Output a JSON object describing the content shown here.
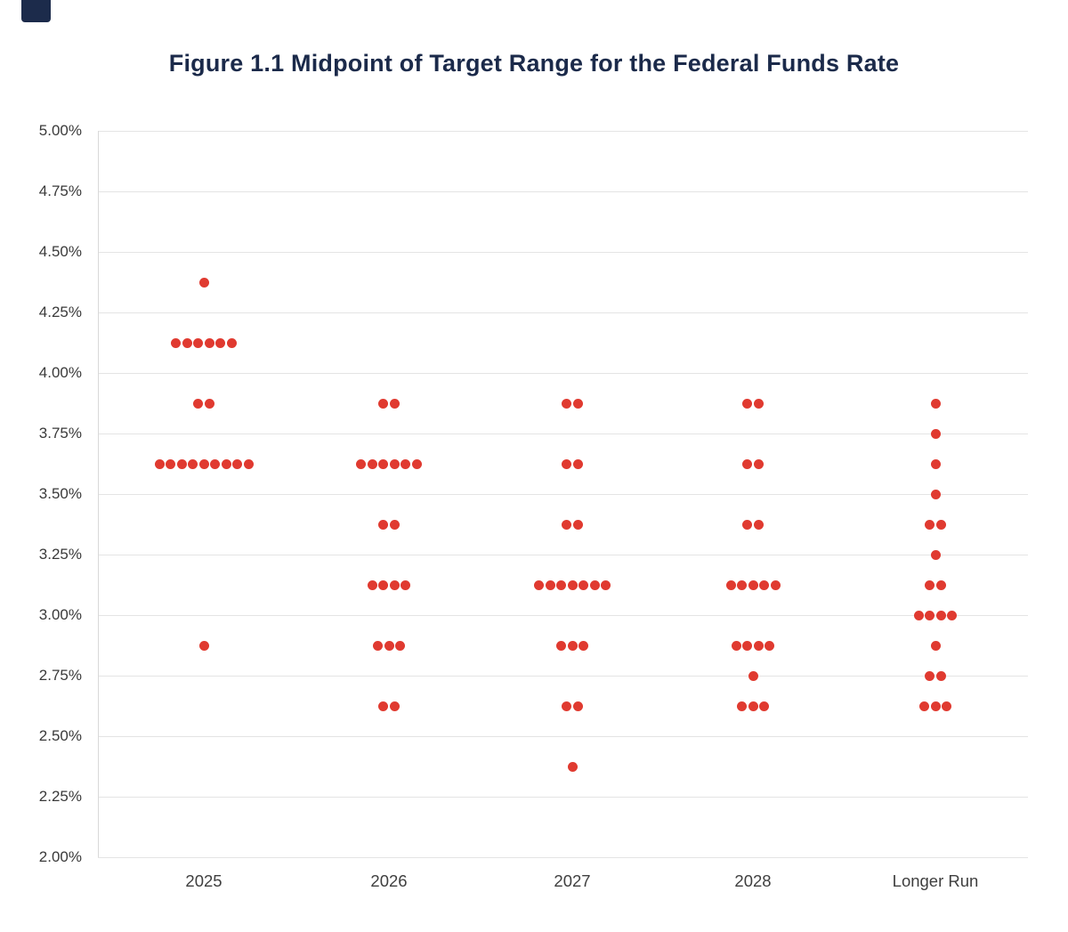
{
  "page": {
    "corner_mark": "navy-block"
  },
  "colors": {
    "dot": "#E03A30",
    "title_text": "#1B2A4A",
    "axis_text": "#3A3A3A",
    "gridline": "#E4E4E4",
    "corner_mark": "#1C2B4B"
  },
  "chart_data": {
    "type": "scatter",
    "subtype": "fomc-dot-plot",
    "title": "Figure 1.1 Midpoint of Target Range for the Federal Funds Rate",
    "x_categories": [
      "2025",
      "2026",
      "2027",
      "2028",
      "Longer Run"
    ],
    "ylabel": "",
    "xlabel": "",
    "ylim": [
      2.0,
      5.0
    ],
    "ytick_step": 0.25,
    "yticks": [
      "5.00%",
      "4.75%",
      "4.50%",
      "4.25%",
      "4.00%",
      "3.75%",
      "3.50%",
      "3.25%",
      "3.00%",
      "2.75%",
      "2.50%",
      "2.25%",
      "2.00%"
    ],
    "grid": "horizontal",
    "legend": "none",
    "dot_color": "#E03A30",
    "series": [
      {
        "category": "2025",
        "dots": [
          {
            "rate": 4.375,
            "count": 1
          },
          {
            "rate": 4.125,
            "count": 6
          },
          {
            "rate": 3.875,
            "count": 2
          },
          {
            "rate": 3.625,
            "count": 9
          },
          {
            "rate": 2.875,
            "count": 1
          }
        ]
      },
      {
        "category": "2026",
        "dots": [
          {
            "rate": 3.875,
            "count": 2
          },
          {
            "rate": 3.625,
            "count": 6
          },
          {
            "rate": 3.375,
            "count": 2
          },
          {
            "rate": 3.125,
            "count": 4
          },
          {
            "rate": 2.875,
            "count": 3
          },
          {
            "rate": 2.625,
            "count": 2
          }
        ]
      },
      {
        "category": "2027",
        "dots": [
          {
            "rate": 3.875,
            "count": 2
          },
          {
            "rate": 3.625,
            "count": 2
          },
          {
            "rate": 3.375,
            "count": 2
          },
          {
            "rate": 3.125,
            "count": 7
          },
          {
            "rate": 2.875,
            "count": 3
          },
          {
            "rate": 2.625,
            "count": 2
          },
          {
            "rate": 2.375,
            "count": 1
          }
        ]
      },
      {
        "category": "2028",
        "dots": [
          {
            "rate": 3.875,
            "count": 2
          },
          {
            "rate": 3.625,
            "count": 2
          },
          {
            "rate": 3.375,
            "count": 2
          },
          {
            "rate": 3.125,
            "count": 5
          },
          {
            "rate": 2.875,
            "count": 4
          },
          {
            "rate": 2.75,
            "count": 1
          },
          {
            "rate": 2.625,
            "count": 3
          }
        ]
      },
      {
        "category": "Longer Run",
        "dots": [
          {
            "rate": 3.875,
            "count": 1
          },
          {
            "rate": 3.75,
            "count": 1
          },
          {
            "rate": 3.625,
            "count": 1
          },
          {
            "rate": 3.5,
            "count": 1
          },
          {
            "rate": 3.375,
            "count": 2
          },
          {
            "rate": 3.25,
            "count": 1
          },
          {
            "rate": 3.125,
            "count": 2
          },
          {
            "rate": 3.0,
            "count": 4
          },
          {
            "rate": 2.875,
            "count": 1
          },
          {
            "rate": 2.75,
            "count": 2
          },
          {
            "rate": 2.625,
            "count": 3
          }
        ]
      }
    ]
  }
}
